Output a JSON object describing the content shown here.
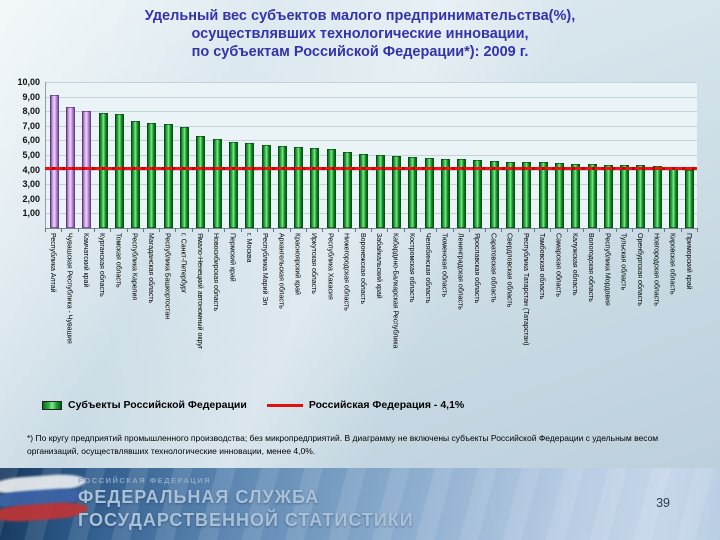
{
  "slide": {
    "title_lines": [
      "Удельный вес субъектов малого предпринимательства(%),",
      "осуществлявших технологические инновации,",
      "по субъектам Российской Федерации*): 2009 г."
    ],
    "footnote": "*) По кругу предприятий промышленного производства; без микропредприятий. В диаграмму не включены субъекты Российской Федерации с удельным весом организаций, осуществлявших технологические инновации, менее 4,0%.",
    "page_number": "39",
    "footer": {
      "small_caption": "РОССИЙСКАЯ ФЕДЕРАЦИЯ",
      "line1": "ФЕДЕРАЛЬНАЯ СЛУЖБА",
      "line2": "ГОСУДАРСТВЕННОЙ СТАТИСТИКИ"
    }
  },
  "chart_data": {
    "type": "bar",
    "title": "Удельный вес субъектов малого предпринимательства(%), осуществлявших технологические инновации, по субъектам Российской Федерации: 2009 г.",
    "categories": [
      "Республика Алтай",
      "Чувашская Республика - Чувашия",
      "Камчатский край",
      "Курганская область",
      "Томская область",
      "Республика Карелия",
      "Магаданская область",
      "Республика Башкортостан",
      "г. Санкт-Петербург",
      "Ямало-Ненецкий автономный округ",
      "Новосибирская область",
      "Пермский край",
      "г. Москва",
      "Республика Марий Эл",
      "Архангельская область",
      "Красноярский край",
      "Иркутская область",
      "Республика Хакасия",
      "Нижегородская область",
      "Воронежская область",
      "Забайкальский край",
      "Кабардино-Балкарская Республика",
      "Костромская область",
      "Челябинская область",
      "Тюменская область",
      "Ленинградская область",
      "Ярославская область",
      "Саратовская область",
      "Свердловская область",
      "Республика Татарстан (Татарстан)",
      "Тамбовская область",
      "Самарская область",
      "Калужская область",
      "Вологодская область",
      "Республика Мордовия",
      "Тульская область",
      "Оренбургская область",
      "Новгородская область",
      "Кировская область",
      "Приморский край"
    ],
    "values": [
      9.1,
      8.3,
      8.0,
      7.9,
      7.8,
      7.3,
      7.2,
      7.1,
      6.9,
      6.3,
      6.1,
      5.9,
      5.8,
      5.7,
      5.6,
      5.55,
      5.5,
      5.4,
      5.2,
      5.1,
      5.0,
      4.9,
      4.85,
      4.8,
      4.75,
      4.7,
      4.65,
      4.6,
      4.55,
      4.5,
      4.5,
      4.45,
      4.4,
      4.4,
      4.35,
      4.3,
      4.3,
      4.25,
      4.1,
      4.0
    ],
    "highlighted_first_bars": 3,
    "ylim": [
      0,
      10
    ],
    "ytick_labels": [
      "10,00",
      "9,00",
      "8,00",
      "7,00",
      "6,00",
      "5,00",
      "4,00",
      "3,00",
      "2,00",
      "1,00"
    ],
    "ytick_values": [
      10,
      9,
      8,
      7,
      6,
      5,
      4,
      3,
      2,
      1
    ],
    "grid": "horizontal",
    "legend_position": "bottom-left",
    "legend": [
      {
        "label": "Субъекты Российской Федерации",
        "type": "bar",
        "color": "#2fbd43"
      },
      {
        "label": "Российская Федерация - 4,1%",
        "type": "line",
        "color": "#e01010"
      }
    ],
    "reference_line": {
      "value": 4.1,
      "color": "#e01010",
      "label": "Российская Федерация - 4,1%"
    },
    "colors": {
      "bar_green": "#2fbd43",
      "bar_purple": "#d9b2ec",
      "title_blue": "#3333ab",
      "plot_bg": "#eaf4f6"
    }
  }
}
